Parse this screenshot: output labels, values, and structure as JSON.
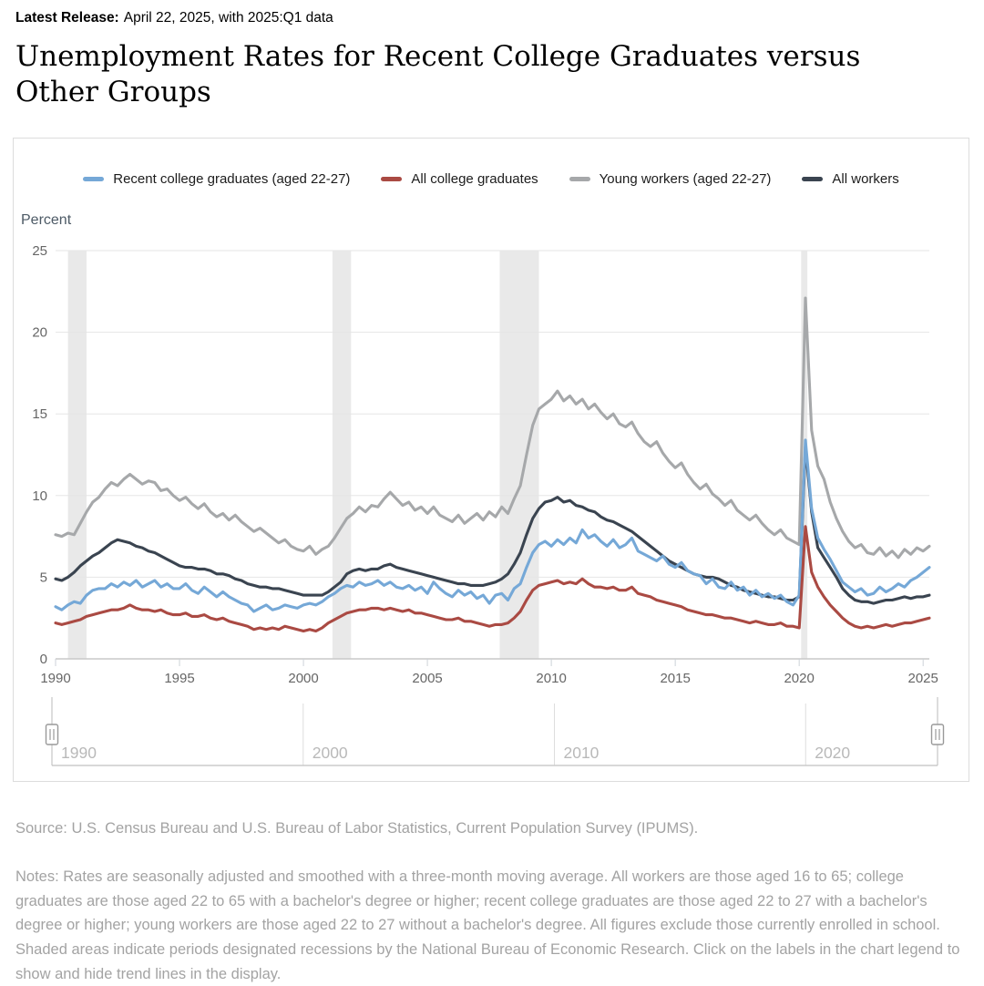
{
  "release": {
    "label": "Latest Release:",
    "text": "April 22, 2025, with 2025:Q1 data"
  },
  "title": "Unemployment Rates for Recent College Graduates versus Other Groups",
  "source": "Source: U.S. Census Bureau and U.S. Bureau of Labor Statistics, Current Population Survey (IPUMS).",
  "notes": "Notes: Rates are seasonally adjusted and smoothed with a three-month moving average. All workers are those aged 16 to 65; college graduates are those aged 22 to 65 with a bachelor's degree or higher; recent college graduates are those aged 22 to 27 with a bachelor's degree or higher; young workers are those aged 22 to 27 without a bachelor's degree. All figures exclude those currently enrolled in school. Shaded areas indicate periods designated recessions by the National Bureau of Economic Research. Click on the labels in the chart legend to show and hide trend lines in the display.",
  "colors": {
    "grid": "#e6e6e6",
    "axis": "#c9c9c9",
    "tick": "#ccd2d8",
    "axis_label": "#666666",
    "recession_band": "#e9e9e9",
    "navigator_line": "#dddddd",
    "navigator_label": "#b9b9b9",
    "handle_border": "#999999"
  },
  "chart_data": {
    "type": "line",
    "title": "Unemployment Rates for Recent College Graduates versus Other Groups",
    "ylabel": "Percent",
    "xlabel": "",
    "ylim": [
      0,
      25
    ],
    "xlim": [
      1990,
      2025.25
    ],
    "yticks": [
      0,
      5,
      10,
      15,
      20,
      25
    ],
    "xticks": [
      1990,
      1995,
      2000,
      2005,
      2010,
      2015,
      2020,
      2025
    ],
    "grid": "horizontal-only",
    "legend_position": "top-center",
    "x_start": 1990,
    "x_step": 0.25,
    "recessions": [
      [
        1990.5,
        1991.25
      ],
      [
        2001.17,
        2001.92
      ],
      [
        2007.92,
        2009.5
      ],
      [
        2020.08,
        2020.33
      ]
    ],
    "navigator": {
      "labels": [
        1990,
        2000,
        2010,
        2020
      ],
      "range_shown": [
        1990,
        2025.25
      ]
    },
    "series": [
      {
        "name": "Recent college graduates (aged 22-27)",
        "color": "#75a8d7",
        "values": [
          3.2,
          3.0,
          3.3,
          3.5,
          3.4,
          3.9,
          4.2,
          4.3,
          4.3,
          4.6,
          4.4,
          4.7,
          4.5,
          4.8,
          4.4,
          4.6,
          4.8,
          4.4,
          4.6,
          4.3,
          4.3,
          4.6,
          4.2,
          4.0,
          4.4,
          4.1,
          3.8,
          4.1,
          3.8,
          3.6,
          3.4,
          3.3,
          2.9,
          3.1,
          3.3,
          3.0,
          3.1,
          3.3,
          3.2,
          3.1,
          3.3,
          3.4,
          3.3,
          3.5,
          3.8,
          4.0,
          4.3,
          4.5,
          4.4,
          4.7,
          4.5,
          4.6,
          4.8,
          4.5,
          4.7,
          4.4,
          4.3,
          4.5,
          4.2,
          4.4,
          4.0,
          4.7,
          4.3,
          4.0,
          3.8,
          4.2,
          3.9,
          4.1,
          3.7,
          3.9,
          3.4,
          3.9,
          4.0,
          3.6,
          4.3,
          4.6,
          5.6,
          6.5,
          7.0,
          7.2,
          6.9,
          7.3,
          7.0,
          7.4,
          7.1,
          7.9,
          7.4,
          7.6,
          7.2,
          6.9,
          7.3,
          6.8,
          7.0,
          7.4,
          6.6,
          6.4,
          6.2,
          6.0,
          6.3,
          5.8,
          5.6,
          5.9,
          5.4,
          5.2,
          5.1,
          4.6,
          4.9,
          4.4,
          4.3,
          4.7,
          4.2,
          4.4,
          3.9,
          4.2,
          3.8,
          4.0,
          3.7,
          3.9,
          3.5,
          3.3,
          3.9,
          13.4,
          9.2,
          7.4,
          6.7,
          6.1,
          5.4,
          4.7,
          4.4,
          4.1,
          4.3,
          3.9,
          4.0,
          4.4,
          4.1,
          4.3,
          4.6,
          4.4,
          4.8,
          5.0,
          5.3,
          5.6
        ]
      },
      {
        "name": "All college graduates",
        "color": "#aa4a43",
        "values": [
          2.2,
          2.1,
          2.2,
          2.3,
          2.4,
          2.6,
          2.7,
          2.8,
          2.9,
          3.0,
          3.0,
          3.1,
          3.3,
          3.1,
          3.0,
          3.0,
          2.9,
          3.0,
          2.8,
          2.7,
          2.7,
          2.8,
          2.6,
          2.6,
          2.7,
          2.5,
          2.4,
          2.5,
          2.3,
          2.2,
          2.1,
          2.0,
          1.8,
          1.9,
          1.8,
          1.9,
          1.8,
          2.0,
          1.9,
          1.8,
          1.7,
          1.8,
          1.7,
          1.9,
          2.2,
          2.4,
          2.6,
          2.8,
          2.9,
          3.0,
          3.0,
          3.1,
          3.1,
          3.0,
          3.1,
          3.0,
          2.9,
          3.0,
          2.8,
          2.8,
          2.7,
          2.6,
          2.5,
          2.4,
          2.4,
          2.5,
          2.3,
          2.3,
          2.2,
          2.1,
          2.0,
          2.1,
          2.1,
          2.2,
          2.5,
          2.9,
          3.6,
          4.2,
          4.5,
          4.6,
          4.7,
          4.8,
          4.6,
          4.7,
          4.6,
          4.9,
          4.6,
          4.4,
          4.4,
          4.3,
          4.4,
          4.2,
          4.2,
          4.4,
          4.0,
          3.9,
          3.8,
          3.6,
          3.5,
          3.4,
          3.3,
          3.2,
          3.0,
          2.9,
          2.8,
          2.7,
          2.7,
          2.6,
          2.5,
          2.5,
          2.4,
          2.3,
          2.2,
          2.3,
          2.2,
          2.1,
          2.1,
          2.2,
          2.0,
          2.0,
          1.9,
          8.1,
          5.3,
          4.4,
          3.8,
          3.3,
          2.9,
          2.5,
          2.2,
          2.0,
          1.9,
          2.0,
          1.9,
          2.0,
          2.1,
          2.0,
          2.1,
          2.2,
          2.2,
          2.3,
          2.4,
          2.5
        ]
      },
      {
        "name": "Young workers (aged 22-27)",
        "color": "#a6a8aa",
        "values": [
          7.6,
          7.5,
          7.7,
          7.6,
          8.3,
          9.0,
          9.6,
          9.9,
          10.4,
          10.8,
          10.6,
          11.0,
          11.3,
          11.0,
          10.7,
          10.9,
          10.8,
          10.3,
          10.4,
          10.0,
          9.7,
          9.9,
          9.5,
          9.2,
          9.5,
          9.0,
          8.7,
          8.9,
          8.5,
          8.8,
          8.4,
          8.1,
          7.8,
          8.0,
          7.7,
          7.4,
          7.1,
          7.3,
          6.9,
          6.7,
          6.6,
          6.9,
          6.4,
          6.7,
          6.9,
          7.4,
          8.0,
          8.6,
          8.9,
          9.3,
          9.0,
          9.4,
          9.3,
          9.8,
          10.2,
          9.8,
          9.4,
          9.6,
          9.1,
          9.3,
          8.9,
          9.3,
          8.8,
          8.6,
          8.4,
          8.8,
          8.3,
          8.6,
          8.9,
          8.5,
          9.0,
          8.7,
          9.3,
          8.9,
          9.8,
          10.6,
          12.5,
          14.3,
          15.3,
          15.6,
          15.9,
          16.4,
          15.8,
          16.1,
          15.6,
          15.9,
          15.3,
          15.6,
          15.1,
          14.7,
          15.0,
          14.4,
          14.2,
          14.5,
          13.8,
          13.3,
          13.0,
          13.3,
          12.6,
          12.1,
          11.7,
          12.0,
          11.3,
          10.8,
          10.4,
          10.7,
          10.1,
          9.8,
          9.4,
          9.7,
          9.1,
          8.8,
          8.5,
          8.8,
          8.3,
          7.9,
          7.6,
          7.9,
          7.4,
          7.2,
          7.0,
          22.1,
          14.0,
          11.8,
          11.0,
          9.6,
          8.6,
          7.8,
          7.2,
          6.8,
          7.0,
          6.5,
          6.4,
          6.8,
          6.3,
          6.6,
          6.2,
          6.7,
          6.4,
          6.8,
          6.6,
          6.9
        ]
      },
      {
        "name": "All workers",
        "color": "#3a4450",
        "values": [
          4.9,
          4.8,
          5.0,
          5.3,
          5.7,
          6.0,
          6.3,
          6.5,
          6.8,
          7.1,
          7.3,
          7.2,
          7.1,
          6.9,
          6.8,
          6.6,
          6.5,
          6.3,
          6.1,
          5.9,
          5.7,
          5.6,
          5.6,
          5.5,
          5.5,
          5.4,
          5.2,
          5.2,
          5.1,
          4.9,
          4.8,
          4.6,
          4.5,
          4.4,
          4.4,
          4.3,
          4.3,
          4.2,
          4.1,
          4.0,
          3.9,
          3.9,
          3.9,
          3.9,
          4.1,
          4.4,
          4.7,
          5.2,
          5.4,
          5.5,
          5.4,
          5.5,
          5.5,
          5.7,
          5.8,
          5.6,
          5.5,
          5.4,
          5.3,
          5.2,
          5.1,
          5.0,
          4.9,
          4.8,
          4.7,
          4.6,
          4.6,
          4.5,
          4.5,
          4.5,
          4.6,
          4.7,
          4.9,
          5.2,
          5.8,
          6.5,
          7.6,
          8.6,
          9.2,
          9.6,
          9.7,
          9.9,
          9.6,
          9.7,
          9.4,
          9.3,
          9.1,
          9.0,
          8.7,
          8.5,
          8.4,
          8.2,
          8.0,
          7.8,
          7.5,
          7.2,
          6.9,
          6.6,
          6.3,
          6.0,
          5.8,
          5.6,
          5.4,
          5.2,
          5.1,
          5.0,
          5.0,
          4.9,
          4.7,
          4.5,
          4.4,
          4.2,
          4.1,
          4.0,
          3.9,
          3.8,
          3.8,
          3.7,
          3.6,
          3.6,
          3.8,
          13.0,
          9.0,
          6.8,
          6.2,
          5.6,
          5.0,
          4.3,
          3.9,
          3.6,
          3.5,
          3.5,
          3.4,
          3.5,
          3.6,
          3.6,
          3.7,
          3.8,
          3.7,
          3.8,
          3.8,
          3.9
        ]
      }
    ]
  }
}
